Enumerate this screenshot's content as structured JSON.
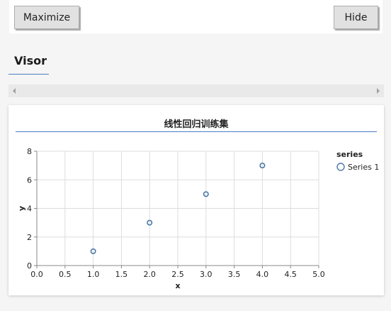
{
  "toolbar": {
    "maximize_label": "Maximize",
    "hide_label": "Hide"
  },
  "tabs": [
    {
      "label": "Visor",
      "active": true
    }
  ],
  "scrollbar": {
    "left_arrow_icon": "triangle-left-icon",
    "right_arrow_icon": "triangle-right-icon"
  },
  "colors": {
    "accent": "#4a7ec2",
    "point_stroke": "#4c78a8",
    "grid": "#dddddd"
  },
  "chart_data": {
    "type": "scatter",
    "title": "线性回归训练集",
    "xlabel": "x",
    "ylabel": "y",
    "xlim": [
      0,
      5
    ],
    "ylim": [
      0,
      8
    ],
    "x_ticks": [
      "0.0",
      "0.5",
      "1.0",
      "1.5",
      "2.0",
      "2.5",
      "3.0",
      "3.5",
      "4.0",
      "4.5",
      "5.0"
    ],
    "y_ticks": [
      "0",
      "2",
      "4",
      "6",
      "8"
    ],
    "grid": true,
    "legend": {
      "title": "series",
      "position": "right",
      "entries": [
        "Series 1"
      ]
    },
    "series": [
      {
        "name": "Series 1",
        "x": [
          1,
          2,
          3,
          4
        ],
        "y": [
          1,
          3,
          5,
          7
        ]
      }
    ]
  }
}
